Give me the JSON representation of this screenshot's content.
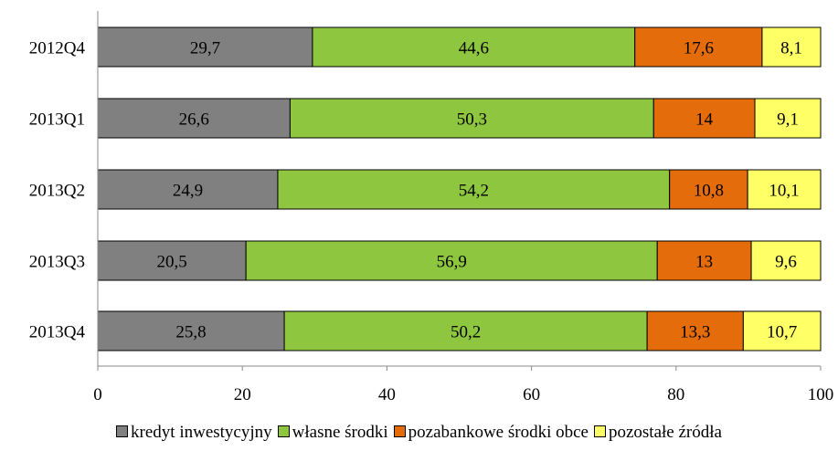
{
  "chart_data": {
    "type": "bar",
    "orientation": "horizontal",
    "stacked": true,
    "title": "",
    "xlabel": "",
    "ylabel": "",
    "xlim": [
      0,
      100
    ],
    "x_ticks": [
      "0",
      "20",
      "40",
      "60",
      "80",
      "100"
    ],
    "grid": false,
    "legend_position": "bottom",
    "categories": [
      "2012Q4",
      "2013Q1",
      "2013Q2",
      "2013Q3",
      "2013Q4"
    ],
    "series": [
      {
        "name": "kredyt inwestycyjny",
        "color": "#808080",
        "values": [
          29.7,
          26.6,
          24.9,
          20.5,
          25.8
        ],
        "labels": [
          "29,7",
          "26,6",
          "24,9",
          "20,5",
          "25,8"
        ]
      },
      {
        "name": "własne środki",
        "color": "#8ec63f",
        "values": [
          44.6,
          50.3,
          54.2,
          56.9,
          50.2
        ],
        "labels": [
          "44,6",
          "50,3",
          "54,2",
          "56,9",
          "50,2"
        ]
      },
      {
        "name": "pozabankowe środki obce",
        "color": "#e46c0a",
        "values": [
          17.6,
          14,
          10.8,
          13,
          13.3
        ],
        "labels": [
          "17,6",
          "14",
          "10,8",
          "13",
          "13,3"
        ]
      },
      {
        "name": "pozostałe źródła",
        "color": "#ffff66",
        "values": [
          8.1,
          9.1,
          10.1,
          9.6,
          10.7
        ],
        "labels": [
          "8,1",
          "9,1",
          "10,1",
          "9,6",
          "10,7"
        ]
      }
    ]
  }
}
